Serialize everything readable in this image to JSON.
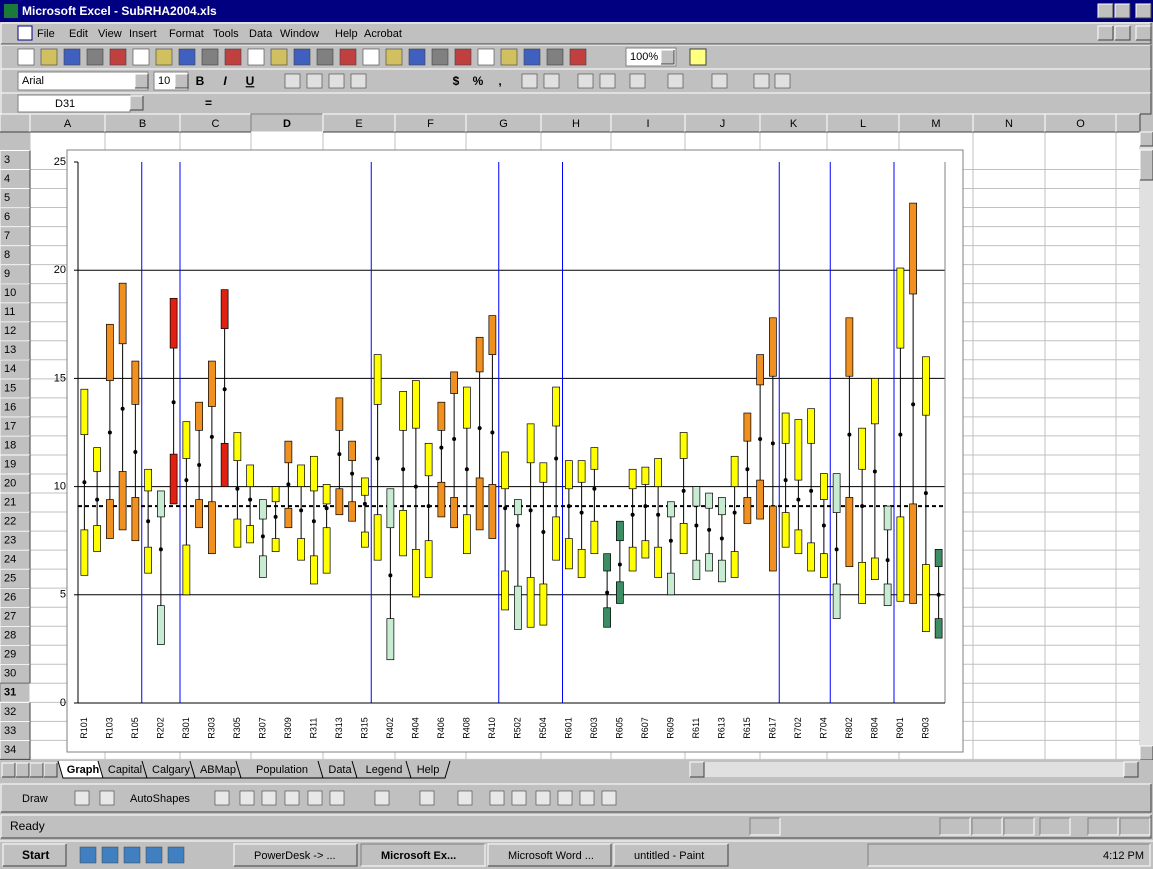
{
  "window": {
    "title": "Microsoft Excel - SubRHA2004.xls"
  },
  "menu": [
    "File",
    "Edit",
    "View",
    "Insert",
    "Format",
    "Tools",
    "Data",
    "Window",
    "Help",
    "Acrobat"
  ],
  "toolbar": {
    "zoom": "100%",
    "font": "Arial",
    "size": "10",
    "format_buttons": [
      "B",
      "I",
      "U",
      "$",
      "%",
      ","
    ]
  },
  "formula_bar": {
    "cell": "D31",
    "equals": "="
  },
  "columns": [
    "A",
    "B",
    "C",
    "D",
    "E",
    "F",
    "G",
    "H",
    "I",
    "J",
    "K",
    "L",
    "M",
    "N",
    "O"
  ],
  "rows": [
    "3",
    "4",
    "5",
    "6",
    "7",
    "8",
    "9",
    "10",
    "11",
    "12",
    "13",
    "14",
    "15",
    "16",
    "17",
    "18",
    "19",
    "20",
    "21",
    "22",
    "23",
    "24",
    "25",
    "26",
    "27",
    "28",
    "29",
    "30",
    "31",
    "32",
    "33",
    "34"
  ],
  "chart_data": {
    "type": "boxplot",
    "categories": [
      "R101",
      null,
      "R103",
      null,
      "R105",
      null,
      "R202",
      null,
      "R301",
      null,
      "R303",
      null,
      "R305",
      null,
      "R307",
      null,
      "R309",
      null,
      "R311",
      null,
      "R313",
      null,
      "R315",
      null,
      "R402",
      null,
      "R404",
      null,
      "R406",
      null,
      "R408",
      null,
      "R410",
      null,
      "R502",
      null,
      "R504",
      null,
      "R601",
      null,
      "R603",
      null,
      "R605",
      null,
      "R607",
      null,
      "R609",
      null,
      "R611",
      null,
      "R613",
      null,
      "R615",
      null,
      "R617",
      null,
      "R702",
      null,
      "R704",
      null,
      "R802",
      null,
      "R804",
      null,
      "R901",
      null,
      "R903",
      null
    ],
    "low": [
      5.9,
      7.0,
      7.6,
      8.0,
      7.5,
      6.0,
      2.7,
      9.2,
      5.0,
      8.1,
      6.9,
      10.0,
      7.2,
      7.4,
      5.8,
      7.0,
      8.1,
      6.6,
      5.5,
      6.0,
      8.7,
      8.4,
      7.2,
      6.6,
      2.0,
      6.8,
      4.9,
      5.8,
      8.6,
      8.1,
      6.9,
      8.0,
      7.6,
      4.3,
      3.4,
      3.5,
      3.6,
      6.6,
      6.2,
      5.8,
      6.9,
      3.5,
      4.6,
      6.1,
      6.7,
      5.8,
      5.0,
      6.9,
      5.7,
      6.1,
      5.6,
      5.8,
      8.3,
      8.5,
      6.1,
      7.2,
      6.9,
      6.1,
      5.8,
      3.9,
      6.3,
      4.6,
      5.7,
      4.5,
      4.7,
      4.6,
      3.3,
      3.0
    ],
    "q1": [
      8.0,
      8.2,
      9.4,
      10.7,
      9.5,
      7.2,
      4.5,
      11.5,
      7.3,
      9.4,
      9.3,
      12.0,
      8.5,
      8.2,
      6.8,
      7.6,
      9.0,
      7.6,
      6.8,
      8.1,
      9.9,
      9.3,
      7.9,
      8.7,
      3.9,
      8.9,
      7.1,
      7.5,
      10.2,
      9.5,
      8.7,
      10.4,
      10.1,
      6.1,
      5.4,
      5.8,
      5.5,
      8.6,
      7.6,
      7.1,
      8.4,
      4.4,
      5.6,
      7.2,
      7.5,
      7.2,
      6.0,
      8.3,
      6.6,
      6.9,
      6.6,
      7.0,
      9.5,
      10.3,
      9.1,
      8.8,
      8.0,
      7.4,
      6.9,
      5.5,
      9.5,
      6.5,
      6.7,
      5.5,
      8.6,
      9.2,
      6.4,
      3.9
    ],
    "median": [
      10.2,
      9.4,
      12.5,
      13.6,
      11.6,
      8.4,
      7.1,
      13.9,
      10.3,
      11.0,
      12.3,
      14.5,
      9.9,
      9.4,
      7.7,
      8.6,
      10.1,
      8.9,
      8.4,
      9.0,
      11.5,
      10.6,
      9.2,
      11.3,
      5.9,
      10.8,
      10.0,
      9.1,
      11.8,
      12.2,
      10.8,
      12.7,
      12.5,
      9.0,
      8.2,
      8.9,
      7.9,
      11.3,
      9.1,
      8.8,
      9.9,
      5.1,
      6.4,
      8.7,
      9.1,
      8.7,
      7.5,
      9.8,
      8.2,
      8.0,
      7.6,
      8.8,
      10.8,
      12.2,
      12.0,
      10.3,
      9.4,
      9.8,
      8.2,
      7.1,
      12.4,
      9.1,
      10.7,
      6.6,
      12.4,
      13.8,
      9.7,
      5.0
    ],
    "q3": [
      12.4,
      10.7,
      14.9,
      16.6,
      13.8,
      9.8,
      8.6,
      16.4,
      11.3,
      12.6,
      13.7,
      17.3,
      11.2,
      10.0,
      8.5,
      9.3,
      11.1,
      10.0,
      9.8,
      9.2,
      12.6,
      11.2,
      9.6,
      13.8,
      8.1,
      12.6,
      12.7,
      10.5,
      12.6,
      14.3,
      12.7,
      15.3,
      16.1,
      9.9,
      8.7,
      11.1,
      10.2,
      12.8,
      9.9,
      10.2,
      10.8,
      6.1,
      7.5,
      9.9,
      10.1,
      10.0,
      8.6,
      11.3,
      9.1,
      9.0,
      8.7,
      10.0,
      12.1,
      14.7,
      15.1,
      12.0,
      10.3,
      12.0,
      9.4,
      8.8,
      15.1,
      10.8,
      12.9,
      8.0,
      16.4,
      18.9,
      13.3,
      6.3
    ],
    "high": [
      14.5,
      11.8,
      17.5,
      19.4,
      15.8,
      10.8,
      9.8,
      18.7,
      13.0,
      13.9,
      15.8,
      19.1,
      12.5,
      11.0,
      9.4,
      10.0,
      12.1,
      11.0,
      11.4,
      10.1,
      14.1,
      12.1,
      10.4,
      16.1,
      9.9,
      14.4,
      14.9,
      12.0,
      13.9,
      15.3,
      14.6,
      16.9,
      17.9,
      11.6,
      9.4,
      12.9,
      11.1,
      14.6,
      11.2,
      11.2,
      11.8,
      6.9,
      8.4,
      10.8,
      10.9,
      11.3,
      9.3,
      12.5,
      10.0,
      9.7,
      9.5,
      11.4,
      13.4,
      16.1,
      17.8,
      13.4,
      13.1,
      13.6,
      10.6,
      10.6,
      17.8,
      12.7,
      15.0,
      9.1,
      20.1,
      23.1,
      16.0,
      7.1
    ],
    "colors": [
      "#ffff00",
      "#ffff00",
      "#f09020",
      "#f09020",
      "#f09020",
      "#ffff00",
      "#c8ecd2",
      "#e02010",
      "#ffff00",
      "#f09020",
      "#f09020",
      "#e02010",
      "#ffff00",
      "#ffff00",
      "#c8ecd2",
      "#ffff00",
      "#f09020",
      "#ffff00",
      "#ffff00",
      "#ffff00",
      "#f09020",
      "#f09020",
      "#ffff00",
      "#ffff00",
      "#c8ecd2",
      "#ffff00",
      "#ffff00",
      "#ffff00",
      "#f09020",
      "#f09020",
      "#ffff00",
      "#f09020",
      "#f09020",
      "#ffff00",
      "#c8ecd2",
      "#ffff00",
      "#ffff00",
      "#ffff00",
      "#ffff00",
      "#ffff00",
      "#ffff00",
      "#3c8c64",
      "#3c8c64",
      "#ffff00",
      "#ffff00",
      "#ffff00",
      "#c8ecd2",
      "#ffff00",
      "#c8ecd2",
      "#c8ecd2",
      "#c8ecd2",
      "#ffff00",
      "#f09020",
      "#f09020",
      "#f09020",
      "#ffff00",
      "#ffff00",
      "#ffff00",
      "#ffff00",
      "#c8ecd2",
      "#f09020",
      "#ffff00",
      "#ffff00",
      "#c8ecd2",
      "#ffff00",
      "#f09020",
      "#ffff00",
      "#3c8c64"
    ],
    "ylim": [
      0,
      25
    ],
    "yticks": [
      0,
      5,
      10,
      15,
      20,
      25
    ],
    "grid": true,
    "reference_line": 9.1
  },
  "sheet_tabs": [
    "Graph",
    "Capital",
    "Calgary",
    "ABMap",
    "Population",
    "Data",
    "Legend",
    "Help"
  ],
  "drawing_toolbar": {
    "draw": "Draw",
    "autoshapes": "AutoShapes"
  },
  "status": "Ready",
  "taskbar": {
    "start": "Start",
    "tasks": [
      "PowerDesk -> ...",
      "Microsoft Ex...",
      "Microsoft Word ...",
      "untitled - Paint"
    ],
    "clock": "4:12 PM"
  }
}
